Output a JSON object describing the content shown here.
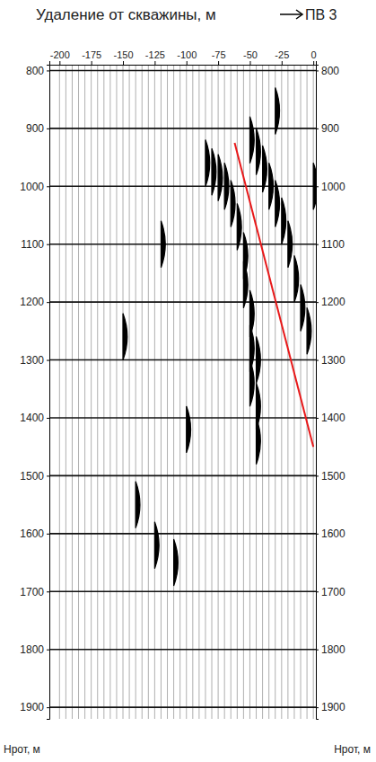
{
  "chart_data": {
    "type": "seismic_gather",
    "title": "Удаление от скважины, м",
    "annotation": "ПВ 3",
    "y_label": "Нрот, м",
    "xlim": [
      -208,
      2
    ],
    "xticks": [
      -200,
      -175,
      -150,
      -125,
      -100,
      -75,
      -50,
      -25,
      0
    ],
    "ylim": [
      790,
      1920
    ],
    "yticks": [
      800,
      900,
      1000,
      1100,
      1200,
      1300,
      1400,
      1500,
      1600,
      1700,
      1800,
      1900
    ],
    "grid": true,
    "traces": [
      -200,
      -195,
      -190,
      -185,
      -180,
      -175,
      -170,
      -165,
      -160,
      -155,
      -150,
      -145,
      -140,
      -135,
      -130,
      -125,
      -120,
      -115,
      -110,
      -105,
      -100,
      -95,
      -90,
      -85,
      -80,
      -75,
      -70,
      -65,
      -60,
      -55,
      -50,
      -45,
      -40,
      -35,
      -30,
      -25,
      -20,
      -15,
      -10,
      -5,
      0
    ],
    "events": {
      "x": [
        -85,
        -80,
        -75,
        -70,
        -65,
        -60,
        -55,
        -55,
        -50,
        -50,
        -50,
        -45,
        -45,
        -45,
        -50,
        -45,
        -40,
        -35,
        -30,
        -25,
        -20,
        -15,
        -10,
        -5,
        0,
        -100,
        -150,
        -140,
        -125,
        -110,
        -120,
        -30
      ],
      "y": [
        960,
        975,
        985,
        1000,
        1030,
        1070,
        1120,
        1170,
        1220,
        1280,
        1340,
        1300,
        1380,
        1440,
        920,
        940,
        970,
        1000,
        1030,
        1060,
        1100,
        1160,
        1210,
        1250,
        1000,
        1420,
        1260,
        1550,
        1620,
        1650,
        1100,
        870
      ]
    },
    "series": [
      {
        "type": "line",
        "color": "#e8191a",
        "x": [
          -62,
          0
        ],
        "values": [
          925,
          1450
        ]
      }
    ]
  }
}
